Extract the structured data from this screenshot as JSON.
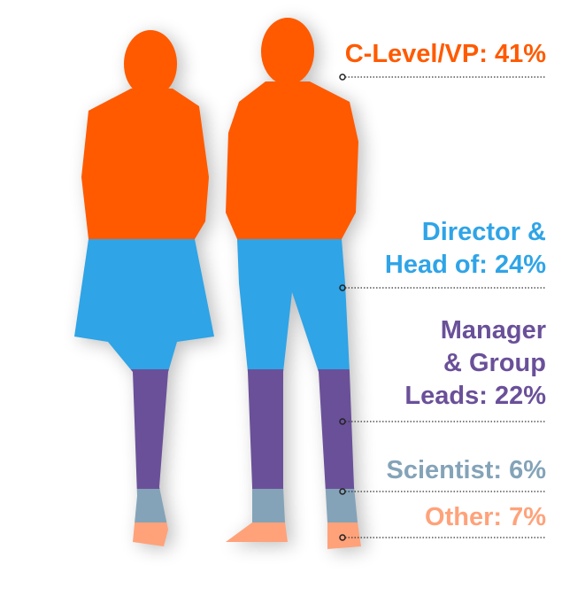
{
  "chart_data": {
    "type": "pictorial-stacked",
    "categories": [
      "C-Level/VP",
      "Director & Head of",
      "Manager & Group Leads",
      "Scientist",
      "Other"
    ],
    "values": [
      41,
      24,
      22,
      6,
      7
    ],
    "unit": "%",
    "labels": [
      "C-Level/VP: 41%",
      "Director &\nHead of: 24%",
      "Manager\n& Group\nLeads: 22%",
      "Scientist: 6%",
      "Other: 7%"
    ],
    "colors": [
      "#FF5A00",
      "#2FA4E7",
      "#6A5099",
      "#84A3B8",
      "#FFA27A"
    ]
  }
}
